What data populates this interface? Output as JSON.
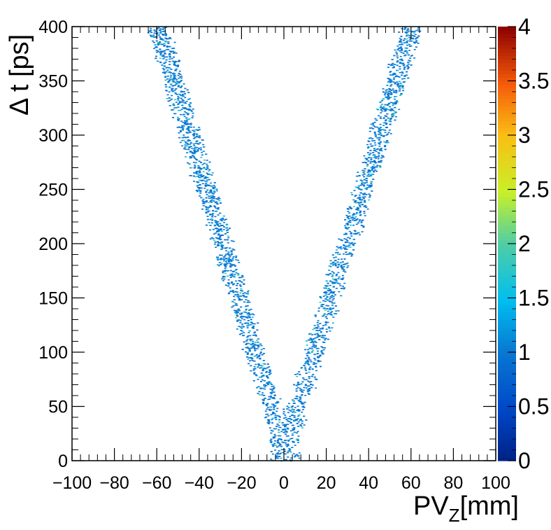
{
  "chart_data": {
    "type": "heatmap",
    "xlabel": "PV",
    "xlabel_subscript": "Z",
    "xlabel_suffix": "[mm]",
    "ylabel": "Δ t [ps]",
    "xlim": [
      -100,
      100
    ],
    "ylim": [
      0,
      400
    ],
    "x_ticks": [
      -100,
      -80,
      -60,
      -40,
      -20,
      0,
      20,
      40,
      60,
      80,
      100
    ],
    "x_tick_labels": [
      "−100",
      "−80",
      "−60",
      "−40",
      "−20",
      "0",
      "20",
      "40",
      "60",
      "80",
      "100"
    ],
    "y_ticks": [
      0,
      50,
      100,
      150,
      200,
      250,
      300,
      350,
      400
    ],
    "y_tick_labels": [
      "0",
      "50",
      "100",
      "150",
      "200",
      "250",
      "300",
      "350",
      "400"
    ],
    "colorbar": {
      "range": [
        0,
        4
      ],
      "ticks": [
        0,
        0.5,
        1,
        1.5,
        2,
        2.5,
        3,
        3.5,
        4
      ],
      "tick_labels": [
        "0",
        "0.5",
        "1",
        "1.5",
        "2",
        "2.5",
        "3",
        "3.5",
        "4"
      ]
    },
    "distribution": {
      "shape": "V",
      "description_points": [
        {
          "pv_z": 0,
          "dt_center": 10
        },
        {
          "pv_z": -60,
          "dt_center": 400
        },
        {
          "pv_z": 60,
          "dt_center": 400
        }
      ],
      "band_halfwidth_mm": 5,
      "typical_content": 1,
      "max_content": 2
    }
  }
}
